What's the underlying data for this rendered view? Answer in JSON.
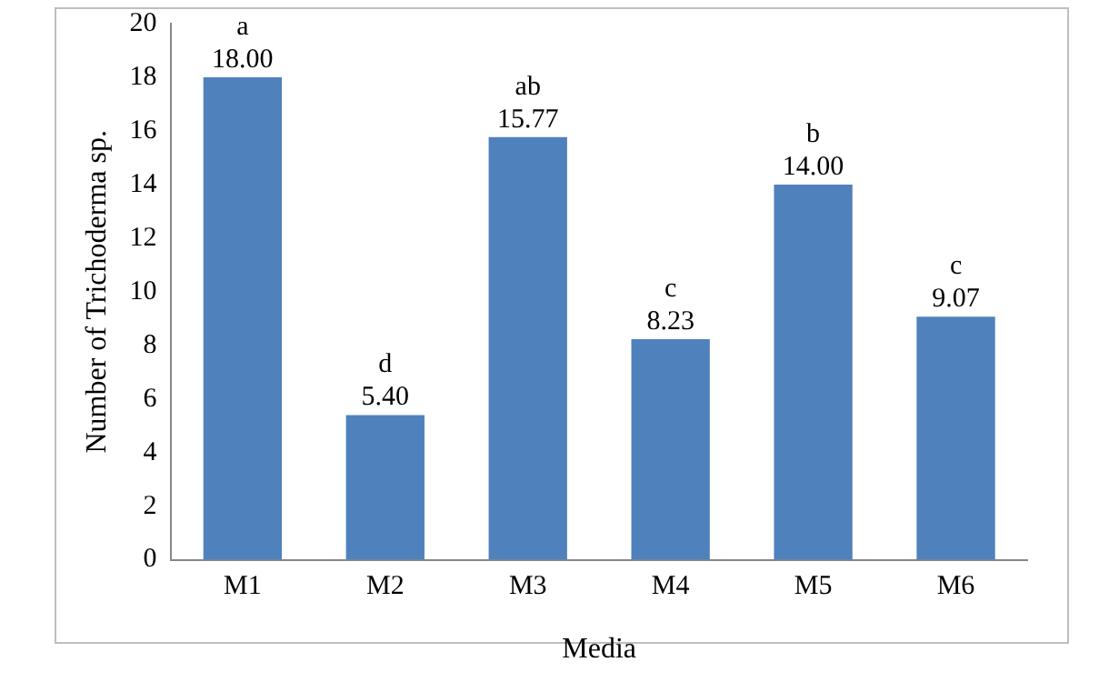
{
  "chart_data": {
    "type": "bar",
    "xlabel": "Media",
    "ylabel": "Number of Trichoderma sp.",
    "categories": [
      "M1",
      "M2",
      "M3",
      "M4",
      "M5",
      "M6"
    ],
    "values": [
      18.0,
      5.4,
      15.77,
      8.23,
      14.0,
      9.07
    ],
    "value_labels": [
      "18.00",
      "5.40",
      "15.77",
      "8.23",
      "14.00",
      "9.07"
    ],
    "color": "#4f81bd",
    "ylim": [
      0,
      20
    ],
    "yticks": [
      0,
      2,
      4,
      6,
      8,
      10,
      12,
      14,
      16,
      18,
      20
    ],
    "grid": false,
    "legend": false,
    "annotations": [
      {
        "text": "a",
        "x": "M1",
        "y": 18.0
      },
      {
        "text": "d",
        "x": "M2",
        "y": 5.4
      },
      {
        "text": "ab",
        "x": "M3",
        "y": 15.77
      },
      {
        "text": "c",
        "x": "M4",
        "y": 8.23
      },
      {
        "text": "b",
        "x": "M5",
        "y": 14.0
      },
      {
        "text": "c",
        "x": "M6",
        "y": 9.07
      }
    ]
  }
}
